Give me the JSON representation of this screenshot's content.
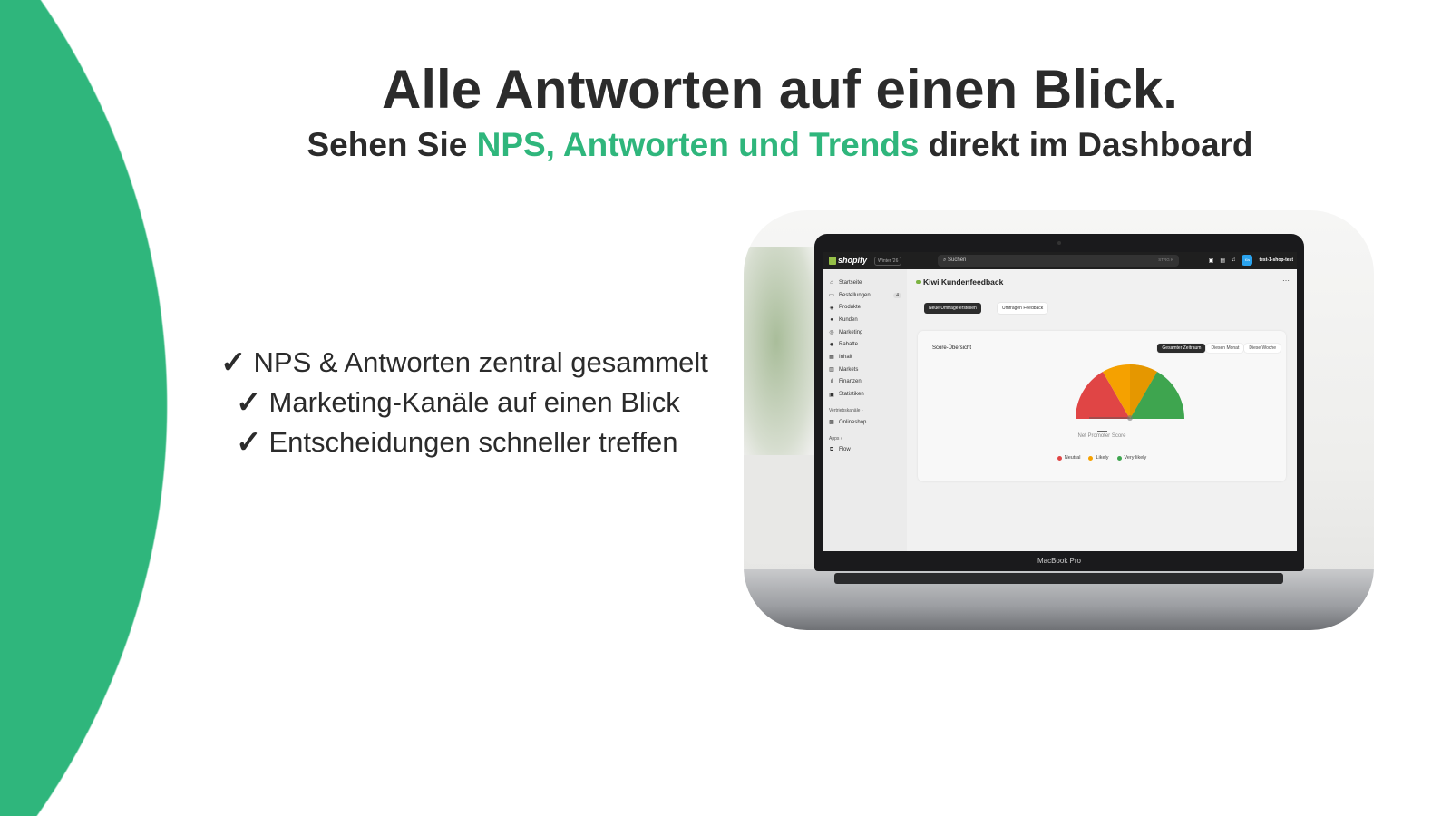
{
  "headline": "Alle Antworten auf einen Blick.",
  "subtitle": {
    "before": "Sehen Sie ",
    "highlight": "NPS, Antworten und Trends",
    "after": " direkt im Dashboard"
  },
  "features": [
    {
      "icon": "checkmark-icon",
      "text": "NPS & Antworten zentral gesammelt"
    },
    {
      "icon": "checkmark-icon",
      "text": "Marketing-Kanäle auf einen Blick"
    },
    {
      "icon": "checkmark-icon",
      "text": "Entscheidungen schneller treffen"
    }
  ],
  "colors": {
    "brand_green": "#2fb67c",
    "text": "#2b2b2b",
    "neutral": "#e04545",
    "likely": "#f5a100",
    "very_likely": "#3ea54f"
  },
  "laptop": {
    "label": "MacBook Pro",
    "topbar": {
      "brand": "shopify",
      "version": "Winter '26",
      "search_placeholder": "Suchen",
      "shortcut": "STRG K",
      "avatar": "t1s",
      "store": "test-1-shop-test"
    },
    "sidebar": {
      "items": [
        {
          "icon": "home-icon",
          "label": "Startseite"
        },
        {
          "icon": "inbox-icon",
          "label": "Bestellungen",
          "badge": "4"
        },
        {
          "icon": "tag-icon",
          "label": "Produkte"
        },
        {
          "icon": "person-icon",
          "label": "Kunden"
        },
        {
          "icon": "target-icon",
          "label": "Marketing"
        },
        {
          "icon": "discount-icon",
          "label": "Rabatte"
        },
        {
          "icon": "content-icon",
          "label": "Inhalt"
        },
        {
          "icon": "globe-icon",
          "label": "Markets"
        },
        {
          "icon": "chart-bar-icon",
          "label": "Finanzen"
        },
        {
          "icon": "analytics-icon",
          "label": "Statistiken"
        }
      ],
      "sales_channels_label": "Vertriebskanäle ›",
      "sales_channels": [
        {
          "icon": "store-icon",
          "label": "Onlineshop"
        }
      ],
      "apps_label": "Apps ›",
      "apps": [
        {
          "icon": "flow-icon",
          "label": "Flow"
        }
      ]
    },
    "page": {
      "title": "Kiwi Kundenfeedback",
      "more": "⋯",
      "buttons": [
        "Neue Umfrage erstellen",
        "Umfragen Feedback"
      ],
      "card": {
        "title": "Score-Übersicht",
        "ranges": [
          "Gesamter Zeitraum",
          "Diesen Monat",
          "Diese Woche"
        ],
        "selected_range": "Gesamter Zeitraum",
        "nps_value": "—",
        "nps_label": "Net Promoter Score",
        "legend": [
          "Neutral",
          "Likely",
          "Very likely"
        ]
      }
    }
  }
}
